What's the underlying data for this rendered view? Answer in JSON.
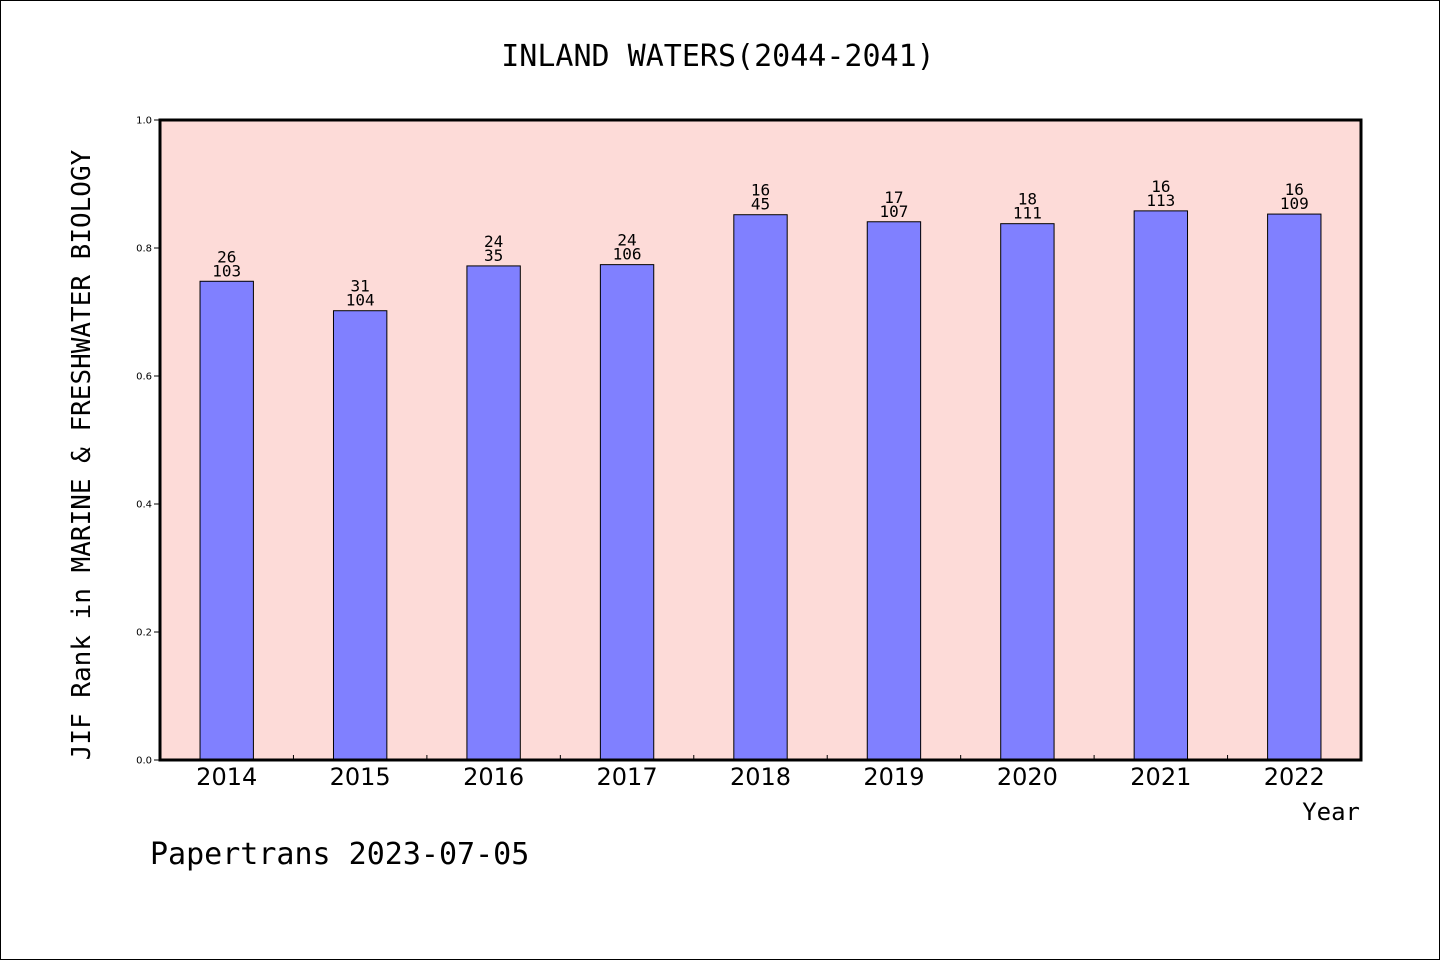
{
  "chart_data": {
    "type": "bar",
    "title": "INLAND WATERS(2044-2041)",
    "xlabel": "Year",
    "ylabel": "JIF Rank in MARINE & FRESHWATER BIOLOGY",
    "ylim": [
      0,
      1.0
    ],
    "yticks": [
      "0.0",
      "0.2",
      "0.4",
      "0.6",
      "0.8",
      "1.0"
    ],
    "categories": [
      "2014",
      "2015",
      "2016",
      "2017",
      "2018",
      "2019",
      "2020",
      "2021",
      "2022"
    ],
    "values": [
      0.748,
      0.702,
      0.772,
      0.774,
      0.852,
      0.841,
      0.838,
      0.858,
      0.853
    ],
    "labels_top": [
      "26",
      "31",
      "24",
      "24",
      "16",
      "17",
      "18",
      "16",
      "16"
    ],
    "labels_bottom": [
      "103",
      "104",
      "35",
      "106",
      "45",
      "107",
      "111",
      "113",
      "109"
    ],
    "grid": false,
    "colors": {
      "plot_bg": "#fddbd8",
      "bar_fill": "#8080ff",
      "bar_stroke": "#000000"
    }
  },
  "footer": "Papertrans 2023-07-05"
}
